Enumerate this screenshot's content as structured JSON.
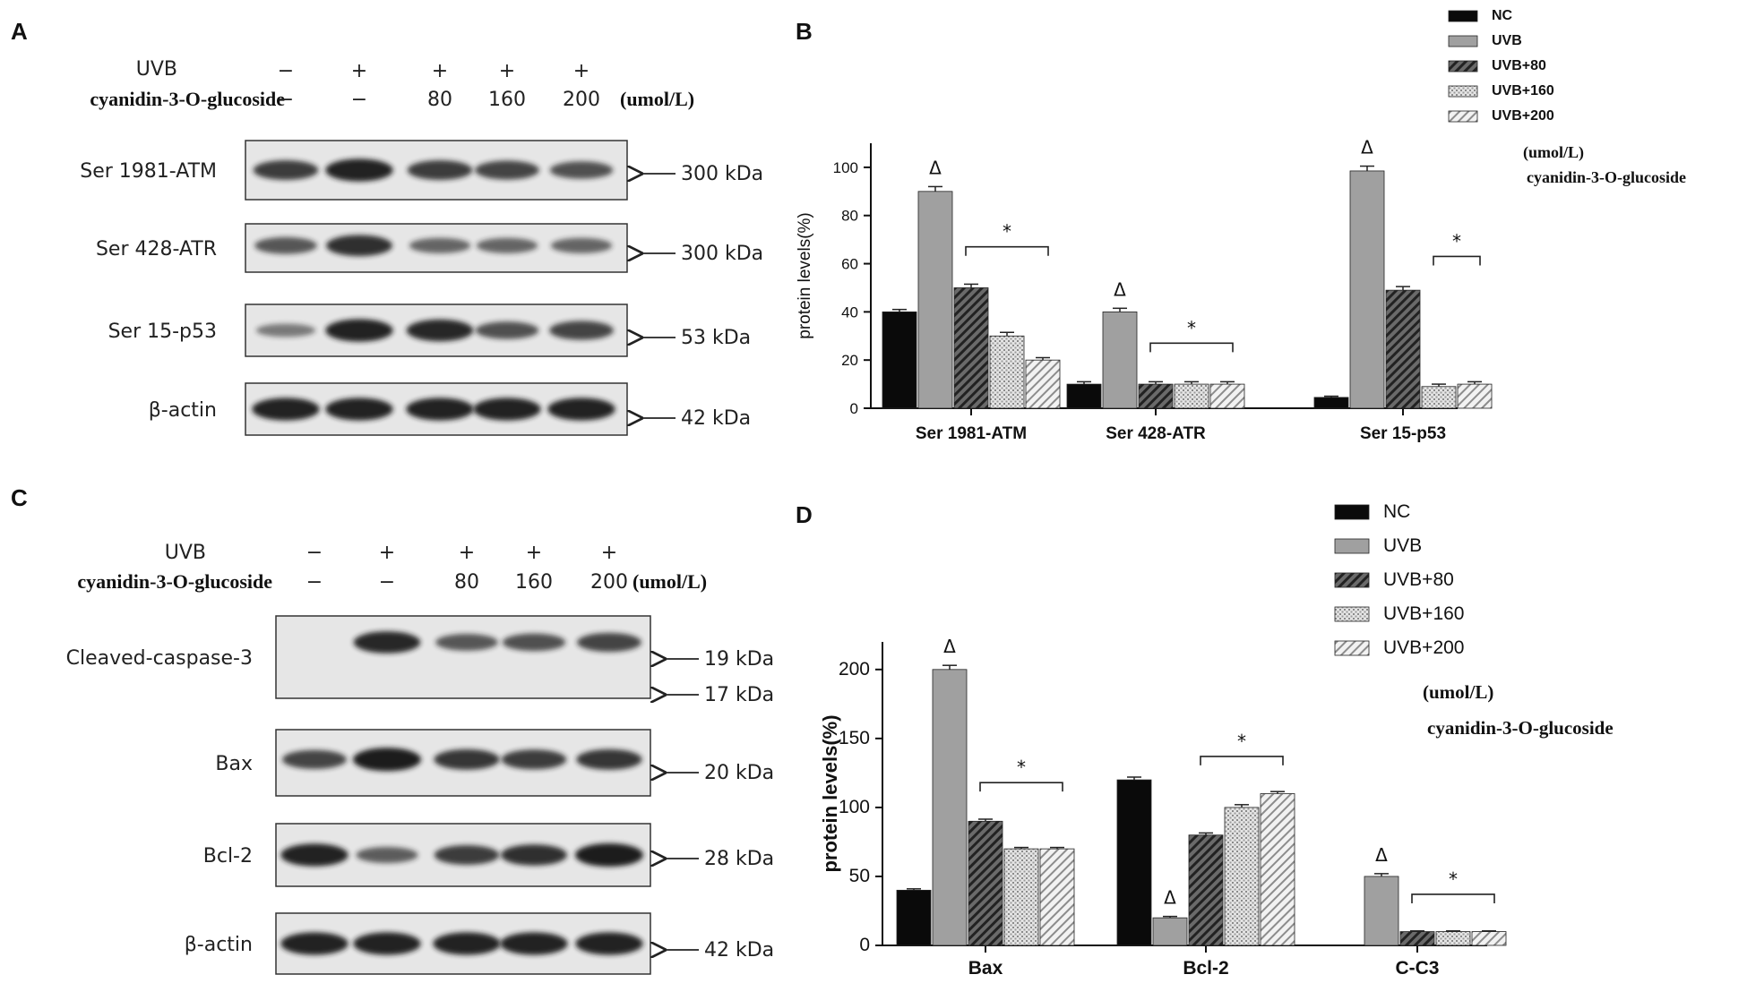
{
  "colors": {
    "nc": "#0a0a0a",
    "uvb": "#a0a0a0",
    "uvb80": "#555555",
    "uvb160": "#cfcfcf",
    "uvb200": "#dcdcdc",
    "blot_bg": "#e6e6e6",
    "band": "#1c1c1c"
  },
  "panelA": {
    "label": "A",
    "uvb_label": "UVB",
    "drug_label": "cyanidin-3-O-glucoside",
    "unit_label": "(umol/L)",
    "uvb_signs": [
      "−",
      "+",
      "+",
      "+",
      "+"
    ],
    "drug_values": [
      "−",
      "−",
      "80",
      "160",
      "200"
    ],
    "blots": [
      {
        "name": "Ser 1981-ATM",
        "kda": "300 kDa",
        "intensity": [
          0.75,
          0.95,
          0.75,
          0.7,
          0.6
        ]
      },
      {
        "name": "Ser 428-ATR",
        "kda": "300 kDa",
        "intensity": [
          0.55,
          0.85,
          0.45,
          0.45,
          0.45
        ]
      },
      {
        "name": "Ser 15-p53",
        "kda": "53 kDa",
        "intensity": [
          0.3,
          0.95,
          0.9,
          0.6,
          0.7
        ]
      },
      {
        "name": "β-actin",
        "kda": "42 kDa",
        "intensity": [
          0.95,
          0.95,
          0.95,
          0.95,
          0.95
        ]
      }
    ]
  },
  "panelC": {
    "label": "C",
    "uvb_label": "UVB",
    "drug_label": "cyanidin-3-O-glucoside",
    "unit_label": "(umol/L)",
    "uvb_signs": [
      "−",
      "+",
      "+",
      "+",
      "+"
    ],
    "drug_values": [
      "−",
      "−",
      "80",
      "160",
      "200"
    ],
    "blots": [
      {
        "name": "Cleaved-caspase-3",
        "kda": [
          "19 kDa",
          "17 kDa"
        ],
        "intensity": [
          0.0,
          0.9,
          0.55,
          0.6,
          0.7
        ]
      },
      {
        "name": "Bax",
        "kda": "20 kDa",
        "intensity": [
          0.7,
          1.0,
          0.8,
          0.75,
          0.8
        ]
      },
      {
        "name": "Bcl-2",
        "kda": "28 kDa",
        "intensity": [
          0.95,
          0.5,
          0.75,
          0.85,
          1.0
        ]
      },
      {
        "name": "β-actin",
        "kda": "42 kDa",
        "intensity": [
          0.95,
          0.95,
          0.95,
          0.95,
          0.95
        ]
      }
    ]
  },
  "chart_data": [
    {
      "panel": "B",
      "type": "bar",
      "title": "",
      "xlabel": "",
      "ylabel": "protein levels(%)",
      "ylim": [
        0,
        110
      ],
      "yticks": [
        0,
        20,
        40,
        60,
        80,
        100
      ],
      "categories": [
        "Ser 1981-ATM",
        "Ser 428-ATR",
        "Ser 15-p53"
      ],
      "series": [
        {
          "name": "NC",
          "values": [
            40,
            10,
            4.5
          ],
          "errors": [
            1,
            1,
            0.5
          ]
        },
        {
          "name": "UVB",
          "values": [
            90,
            40,
            98.5
          ],
          "errors": [
            2,
            1.5,
            2
          ]
        },
        {
          "name": "UVB+80",
          "values": [
            50,
            10,
            49
          ],
          "errors": [
            1.5,
            1,
            1.5
          ]
        },
        {
          "name": "UVB+160",
          "values": [
            30,
            10,
            9
          ],
          "errors": [
            1.5,
            1,
            1
          ]
        },
        {
          "name": "UVB+200",
          "values": [
            20,
            10,
            10
          ],
          "errors": [
            1,
            1,
            1
          ]
        }
      ],
      "legend": {
        "position": "top-right",
        "note_unit": "(umol/L)",
        "note_drug": "cyanidin-3-O-glucoside"
      },
      "annotations": [
        {
          "text": "Δ",
          "category": 0,
          "series": 1
        },
        {
          "text": "Δ",
          "category": 1,
          "series": 1
        },
        {
          "text": "Δ",
          "category": 2,
          "series": 1
        },
        {
          "text": "*",
          "category": 0,
          "from_series": 2,
          "to_series": 4,
          "y": 67
        },
        {
          "text": "*",
          "category": 1,
          "from_series": 2,
          "to_series": 4,
          "y": 27
        },
        {
          "text": "*",
          "category": 2,
          "from_series": 3,
          "to_series": 4,
          "y": 63
        }
      ]
    },
    {
      "panel": "D",
      "type": "bar",
      "title": "",
      "xlabel": "",
      "ylabel": "protein levels(%)",
      "ylim": [
        0,
        220
      ],
      "yticks": [
        0,
        50,
        100,
        150,
        200
      ],
      "categories": [
        "Bax",
        "Bcl-2",
        "C-C3"
      ],
      "series": [
        {
          "name": "NC",
          "values": [
            40,
            120,
            0
          ],
          "errors": [
            1,
            2,
            0
          ]
        },
        {
          "name": "UVB",
          "values": [
            200,
            20,
            50
          ],
          "errors": [
            3,
            1,
            2
          ]
        },
        {
          "name": "UVB+80",
          "values": [
            90,
            80,
            10
          ],
          "errors": [
            1.5,
            1.5,
            0.5
          ]
        },
        {
          "name": "UVB+160",
          "values": [
            70,
            100,
            10
          ],
          "errors": [
            1,
            2,
            0.5
          ]
        },
        {
          "name": "UVB+200",
          "values": [
            70,
            110,
            10
          ],
          "errors": [
            1,
            1.5,
            0.5
          ]
        }
      ],
      "legend": {
        "position": "top-right",
        "note_unit": "(umol/L)",
        "note_drug": "cyanidin-3-O-glucoside"
      },
      "annotations": [
        {
          "text": "Δ",
          "category": 0,
          "series": 1
        },
        {
          "text": "Δ",
          "category": 1,
          "series": 1
        },
        {
          "text": "Δ",
          "category": 2,
          "series": 1
        },
        {
          "text": "*",
          "category": 0,
          "from_series": 2,
          "to_series": 4,
          "y": 118
        },
        {
          "text": "*",
          "category": 1,
          "from_series": 2,
          "to_series": 4,
          "y": 137
        },
        {
          "text": "*",
          "category": 2,
          "from_series": 2,
          "to_series": 4,
          "y": 37
        }
      ]
    }
  ]
}
